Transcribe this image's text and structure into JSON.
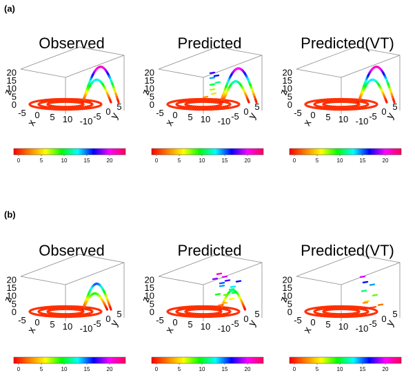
{
  "panel_labels": [
    "(a)",
    "(b)"
  ],
  "colorbar": {
    "ticks": [
      "0",
      "5",
      "10",
      "15",
      "20"
    ],
    "stops": [
      "#ff0000",
      "#ff8000",
      "#ffff00",
      "#00ff00",
      "#00ffff",
      "#0000ff",
      "#ff00ff",
      "#ff0055"
    ]
  },
  "chart_data": [
    {
      "type": "scatter",
      "panel": "(a)",
      "title": "Observed",
      "xlabel": "x",
      "ylabel": "y",
      "zlabel": "z",
      "x_ticks": [
        "-5",
        "0",
        "5",
        "10"
      ],
      "y_ticks": [
        "-10",
        "-5",
        "0",
        "5"
      ],
      "z_ticks": [
        "0",
        "5",
        "10",
        "15",
        "20"
      ],
      "zlim": [
        0,
        24
      ],
      "color_by": "z",
      "colorbar_ticks": [
        "0",
        "5",
        "10",
        "15",
        "20"
      ],
      "rings": [
        {
          "x0": 5,
          "y0": -2,
          "r": 10
        },
        {
          "x0": 5,
          "y0": -2,
          "r": 7.5
        },
        {
          "x0": 5,
          "y0": -2,
          "r": 5
        }
      ],
      "arches": [
        {
          "y": -2,
          "z_peak": 22,
          "x_range": [
            7,
            15
          ]
        },
        {
          "y": -2,
          "z_peak": 14,
          "x_range": [
            7,
            13
          ]
        }
      ],
      "scatter_points": []
    },
    {
      "type": "scatter",
      "panel": "(a)",
      "title": "Predicted",
      "xlabel": "x",
      "ylabel": "y",
      "zlabel": "z",
      "x_ticks": [
        "-5",
        "0",
        "5",
        "10"
      ],
      "y_ticks": [
        "-10",
        "-5",
        "0",
        "5"
      ],
      "z_ticks": [
        "0",
        "5",
        "10",
        "15",
        "20"
      ],
      "zlim": [
        0,
        24
      ],
      "color_by": "z",
      "colorbar_ticks": [
        "0",
        "5",
        "10",
        "15",
        "20"
      ],
      "rings": [
        {
          "x0": 5,
          "y0": -2,
          "r": 10
        },
        {
          "x0": 5,
          "y0": -2,
          "r": 7.5
        },
        {
          "x0": 5,
          "y0": -2,
          "r": 5
        }
      ],
      "arches": [
        {
          "y": -2,
          "z_peak": 21,
          "x_range": [
            7,
            15
          ]
        },
        {
          "y": -2,
          "z_peak": 13,
          "x_range": [
            8,
            13
          ]
        }
      ],
      "scatter_points": [
        {
          "x": 6,
          "y": -6,
          "z": 18
        },
        {
          "x": 6,
          "y": -6,
          "z": 15
        },
        {
          "x": 6,
          "y": -6,
          "z": 11
        },
        {
          "x": 6,
          "y": -6,
          "z": 8
        },
        {
          "x": 7,
          "y": -4,
          "z": 6
        },
        {
          "x": 5,
          "y": -4,
          "z": 4
        },
        {
          "x": 8,
          "y": -3,
          "z": 17
        },
        {
          "x": 7,
          "y": -7,
          "z": 12
        }
      ]
    },
    {
      "type": "scatter",
      "panel": "(a)",
      "title": "Predicted(VT)",
      "xlabel": "x",
      "ylabel": "y",
      "zlabel": "z",
      "x_ticks": [
        "-5",
        "0",
        "5",
        "10"
      ],
      "y_ticks": [
        "-10",
        "-5",
        "0",
        "5"
      ],
      "z_ticks": [
        "0",
        "5",
        "10",
        "15",
        "20"
      ],
      "zlim": [
        0,
        24
      ],
      "color_by": "z",
      "colorbar_ticks": [
        "0",
        "5",
        "10",
        "15",
        "20"
      ],
      "rings": [
        {
          "x0": 5,
          "y0": -2,
          "r": 10
        },
        {
          "x0": 5,
          "y0": -2,
          "r": 7.5
        },
        {
          "x0": 5,
          "y0": -2,
          "r": 5
        }
      ],
      "arches": [
        {
          "y": -2,
          "z_peak": 22,
          "x_range": [
            7,
            15
          ]
        },
        {
          "y": -2,
          "z_peak": 14,
          "x_range": [
            7,
            13
          ]
        }
      ],
      "scatter_points": []
    },
    {
      "type": "scatter",
      "panel": "(b)",
      "title": "Observed",
      "xlabel": "x",
      "ylabel": "y",
      "zlabel": "z",
      "x_ticks": [
        "-5",
        "0",
        "5",
        "10"
      ],
      "y_ticks": [
        "-10",
        "-5",
        "0",
        "5"
      ],
      "z_ticks": [
        "0",
        "5",
        "10",
        "15",
        "20"
      ],
      "zlim": [
        0,
        24
      ],
      "color_by": "z",
      "colorbar_ticks": [
        "0",
        "5",
        "10",
        "15",
        "20"
      ],
      "rings": [
        {
          "x0": 4,
          "y0": -2,
          "r": 10
        },
        {
          "x0": 4,
          "y0": -2,
          "r": 7.5
        },
        {
          "x0": 4,
          "y0": -2,
          "r": 5
        }
      ],
      "arches": [
        {
          "y": -2,
          "z_peak": 16,
          "x_range": [
            7,
            13
          ]
        },
        {
          "y": -2,
          "z_peak": 10,
          "x_range": [
            7,
            12
          ]
        }
      ],
      "scatter_points": []
    },
    {
      "type": "scatter",
      "panel": "(b)",
      "title": "Predicted",
      "xlabel": "x",
      "ylabel": "y",
      "zlabel": "z",
      "x_ticks": [
        "-5",
        "0",
        "5",
        "10"
      ],
      "y_ticks": [
        "-10",
        "-5",
        "0",
        "5"
      ],
      "z_ticks": [
        "0",
        "5",
        "10",
        "15",
        "20"
      ],
      "zlim": [
        0,
        24
      ],
      "color_by": "z",
      "colorbar_ticks": [
        "0",
        "5",
        "10",
        "15",
        "20"
      ],
      "rings": [
        {
          "x0": 4,
          "y0": -2,
          "r": 10
        },
        {
          "x0": 4,
          "y0": -2,
          "r": 7.5
        },
        {
          "x0": 4,
          "y0": -2,
          "r": 5
        }
      ],
      "arches": [
        {
          "y": -2,
          "z_peak": 12,
          "x_range": [
            7,
            12
          ]
        }
      ],
      "scatter_points": [
        {
          "x": 8,
          "y": -5,
          "z": 22
        },
        {
          "x": 9,
          "y": -6,
          "z": 20
        },
        {
          "x": 10,
          "y": -5,
          "z": 18
        },
        {
          "x": 8,
          "y": -7,
          "z": 16
        },
        {
          "x": 9,
          "y": -4,
          "z": 15
        },
        {
          "x": 11,
          "y": -6,
          "z": 14
        },
        {
          "x": 10,
          "y": -8,
          "z": 12
        },
        {
          "x": 8,
          "y": -4,
          "z": 10
        },
        {
          "x": 9,
          "y": -7,
          "z": 9
        },
        {
          "x": 11,
          "y": -5,
          "z": 7
        },
        {
          "x": 10,
          "y": -3,
          "z": 5
        },
        {
          "x": 8,
          "y": -6,
          "z": 3
        },
        {
          "x": 12,
          "y": -7,
          "z": 17
        },
        {
          "x": 7,
          "y": -5,
          "z": 19
        },
        {
          "x": 12,
          "y": -4,
          "z": 11
        }
      ]
    },
    {
      "type": "scatter",
      "panel": "(b)",
      "title": "Predicted(VT)",
      "xlabel": "x",
      "ylabel": "y",
      "zlabel": "z",
      "x_ticks": [
        "-5",
        "0",
        "5",
        "10"
      ],
      "y_ticks": [
        "-10",
        "-5",
        "0",
        "5"
      ],
      "z_ticks": [
        "0",
        "5",
        "10",
        "15",
        "20"
      ],
      "zlim": [
        0,
        24
      ],
      "color_by": "z",
      "colorbar_ticks": [
        "0",
        "5",
        "10",
        "15",
        "20"
      ],
      "rings": [
        {
          "x0": 4,
          "y0": -2,
          "r": 10
        },
        {
          "x0": 4,
          "y0": -2,
          "r": 7.5
        },
        {
          "x0": 4,
          "y0": -2,
          "r": 5
        }
      ],
      "arches": [],
      "scatter_points": [
        {
          "x": 9,
          "y": -6,
          "z": 20
        },
        {
          "x": 10,
          "y": -5,
          "z": 17
        },
        {
          "x": 11,
          "y": -7,
          "z": 15
        },
        {
          "x": 10,
          "y": -4,
          "z": 12
        },
        {
          "x": 12,
          "y": -6,
          "z": 9
        },
        {
          "x": 11,
          "y": -3,
          "z": 6
        },
        {
          "x": 9,
          "y": -8,
          "z": 4
        },
        {
          "x": 12,
          "y": -5,
          "z": 2
        },
        {
          "x": 13,
          "y": -7,
          "z": 3
        },
        {
          "x": 10,
          "y": -7,
          "z": 1
        }
      ]
    }
  ]
}
